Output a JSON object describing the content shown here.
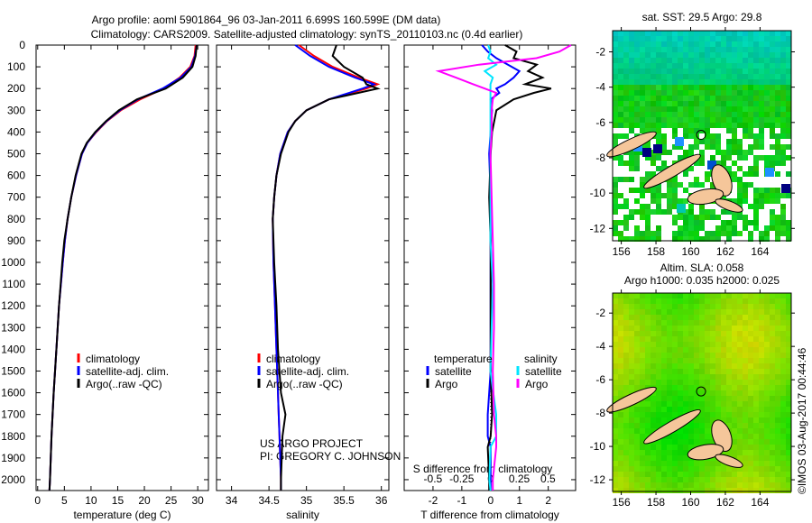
{
  "title_line1": "Argo profile: aoml 5901864_96 03-Jan-2011 6.699S 160.599E (DM data)",
  "title_line2": "Climatology: CARS2009. Satellite-adjusted climatology: synTS_20110103.nc (0.4d earlier)",
  "credit_line1": "US ARGO PROJECT",
  "credit_line2": "PI: GREGORY C. JOHNSON",
  "imos_stamp": "©IMOS 03-Aug-2017 00:44:46",
  "colors": {
    "climatology": "#ff0000",
    "satellite": "#0000ff",
    "argo": "#000000",
    "sal_satellite": "#00e5ff",
    "sal_argo": "#ff00ff"
  },
  "chart_data": [
    {
      "type": "line",
      "title": "",
      "xlabel": "temperature (deg C)",
      "ylabel": "",
      "xlim": [
        -0.3,
        32
      ],
      "ylim": [
        2050,
        0
      ],
      "xticks": [
        0,
        5,
        10,
        15,
        20,
        25,
        30
      ],
      "yticks": [
        0,
        100,
        200,
        300,
        400,
        500,
        600,
        700,
        800,
        900,
        1000,
        1100,
        1200,
        1300,
        1400,
        1500,
        1600,
        1700,
        1800,
        1900,
        2000
      ],
      "legend": [
        "climatology",
        "satellite-adj. clim.",
        "Argo(..raw -QC)"
      ],
      "depth": [
        0,
        50,
        100,
        150,
        200,
        250,
        300,
        350,
        400,
        450,
        500,
        600,
        700,
        800,
        900,
        1000,
        1200,
        1400,
        1600,
        1800,
        2000,
        2050
      ],
      "series": [
        {
          "name": "climatology",
          "values": [
            29.6,
            29.4,
            28.6,
            26.6,
            23.6,
            19.2,
            15.6,
            13.0,
            11.0,
            9.3,
            8.3,
            7.2,
            6.3,
            5.6,
            5.1,
            4.7,
            4.0,
            3.5,
            3.0,
            2.6,
            2.3,
            2.2
          ]
        },
        {
          "name": "satellite-adj. clim.",
          "values": [
            29.8,
            29.5,
            28.8,
            26.8,
            23.4,
            18.8,
            15.4,
            12.9,
            10.9,
            9.3,
            8.3,
            7.2,
            6.3,
            5.6,
            5.1,
            4.7,
            4.0,
            3.5,
            3.0,
            2.6,
            2.3,
            2.2
          ]
        },
        {
          "name": "Argo(..raw -QC)",
          "values": [
            29.8,
            29.6,
            29.0,
            27.2,
            24.0,
            18.6,
            15.2,
            12.8,
            10.8,
            9.2,
            8.2,
            7.1,
            6.3,
            5.6,
            5.0,
            4.6,
            4.0,
            3.5,
            3.0,
            2.6,
            2.3,
            2.2
          ]
        }
      ]
    },
    {
      "type": "line",
      "title": "",
      "xlabel": "salinity",
      "xlim": [
        33.8,
        36.1
      ],
      "ylim": [
        2050,
        0
      ],
      "xticks": [
        34,
        34.5,
        35,
        35.5,
        36
      ],
      "legend": [
        "climatology",
        "satellite-adj. clim.",
        "Argo(..raw -QC)"
      ],
      "depth": [
        0,
        50,
        100,
        150,
        180,
        200,
        250,
        300,
        350,
        400,
        500,
        600,
        700,
        800,
        1000,
        1200,
        1400,
        1600,
        1700,
        1800,
        2000,
        2050
      ],
      "series": [
        {
          "name": "climatology",
          "values": [
            34.9,
            35.1,
            35.35,
            35.7,
            35.95,
            35.8,
            35.3,
            35.0,
            34.85,
            34.75,
            34.65,
            34.6,
            34.57,
            34.55,
            34.56,
            34.58,
            34.6,
            34.62,
            34.63,
            34.64,
            34.66,
            34.66
          ]
        },
        {
          "name": "satellite-adj. clim.",
          "values": [
            34.85,
            35.05,
            35.3,
            35.65,
            35.9,
            35.75,
            35.3,
            35.0,
            34.85,
            34.75,
            34.65,
            34.6,
            34.57,
            34.55,
            34.56,
            34.58,
            34.6,
            34.62,
            34.63,
            34.64,
            34.66,
            34.66
          ]
        },
        {
          "name": "Argo(..raw -QC)",
          "values": [
            35.4,
            35.35,
            35.5,
            35.75,
            35.8,
            35.95,
            35.3,
            35.0,
            34.85,
            34.76,
            34.66,
            34.6,
            34.57,
            34.55,
            34.57,
            34.6,
            34.62,
            34.66,
            34.72,
            34.68,
            34.66,
            34.66
          ]
        }
      ]
    },
    {
      "type": "line",
      "xlabel": "T difference from climatology",
      "xlabel2": "S difference from climatology",
      "xlim": [
        -3,
        2.95
      ],
      "xlim2": [
        -0.75,
        0.74
      ],
      "ylim": [
        2050,
        0
      ],
      "xticks": [
        -2,
        -1,
        0,
        1,
        2
      ],
      "xticks2": [
        -0.5,
        -0.25,
        0,
        0.25,
        0.5
      ],
      "xticklabels2": [
        "-0.5",
        "-0.25",
        "0",
        "0.25",
        "0.5"
      ],
      "legend_headers": [
        "temperature",
        "salinity"
      ],
      "legend": [
        "satellite",
        "Argo",
        "satellite",
        "Argo"
      ],
      "depth": [
        0,
        30,
        60,
        90,
        120,
        150,
        180,
        200,
        220,
        250,
        300,
        400,
        500,
        700,
        900,
        1100,
        1300,
        1500,
        1700,
        1800,
        1850,
        2000,
        2050
      ],
      "series": [
        {
          "name": "T satellite",
          "axis": "T",
          "values": [
            -0.3,
            -0.1,
            0.2,
            0.6,
            1.0,
            0.8,
            0.5,
            0.2,
            0.3,
            0.0,
            0.05,
            0.0,
            -0.05,
            0.0,
            0.0,
            0.0,
            0.0,
            0.0,
            -0.1,
            -0.1,
            0.0,
            0.0,
            0.0
          ]
        },
        {
          "name": "T Argo",
          "axis": "T",
          "values": [
            0.5,
            0.9,
            0.8,
            1.6,
            1.3,
            1.8,
            1.2,
            2.1,
            1.5,
            0.8,
            0.2,
            0.05,
            0.0,
            -0.05,
            0.0,
            0.0,
            0.0,
            0.0,
            0.05,
            0.0,
            -0.1,
            -0.05,
            -0.05
          ]
        },
        {
          "name": "S satellite",
          "axis": "S",
          "values": [
            -0.02,
            0.0,
            -0.02,
            0.05,
            -0.05,
            0.02,
            0.0,
            0.0,
            0.0,
            0.0,
            0.0,
            0.0,
            0.0,
            0.0,
            0.0,
            0.02,
            0.01,
            0.0,
            0.05,
            0.05,
            0.0,
            -0.01,
            0.0
          ]
        },
        {
          "name": "S Argo",
          "axis": "S",
          "values": [
            0.7,
            0.6,
            0.4,
            -0.1,
            -0.45,
            -0.3,
            -0.15,
            -0.05,
            0.05,
            0.02,
            0.01,
            0.01,
            0.0,
            0.01,
            0.02,
            0.03,
            0.03,
            0.02,
            0.03,
            0.05,
            0.05,
            0.02,
            0.02
          ]
        }
      ]
    },
    {
      "type": "heatmap",
      "title": "sat. SST: 29.5 Argo: 29.8",
      "xlim": [
        155.5,
        165.8
      ],
      "ylim": [
        -12.7,
        -0.8
      ],
      "xticks": [
        156,
        158,
        160,
        162,
        164
      ],
      "yticks": [
        -2,
        -4,
        -6,
        -8,
        -10,
        -12
      ],
      "float_position": [
        160.6,
        -6.7
      ]
    },
    {
      "type": "heatmap",
      "title_line1": "Altim. SLA: 0.058",
      "title_line2": "Argo h1000: 0.035 h2000: 0.025",
      "xlim": [
        155.5,
        165.8
      ],
      "ylim": [
        -12.7,
        -0.8
      ],
      "xticks": [
        156,
        158,
        160,
        162,
        164
      ],
      "yticks": [
        -2,
        -4,
        -6,
        -8,
        -10,
        -12
      ],
      "float_position": [
        160.6,
        -6.7
      ]
    }
  ]
}
